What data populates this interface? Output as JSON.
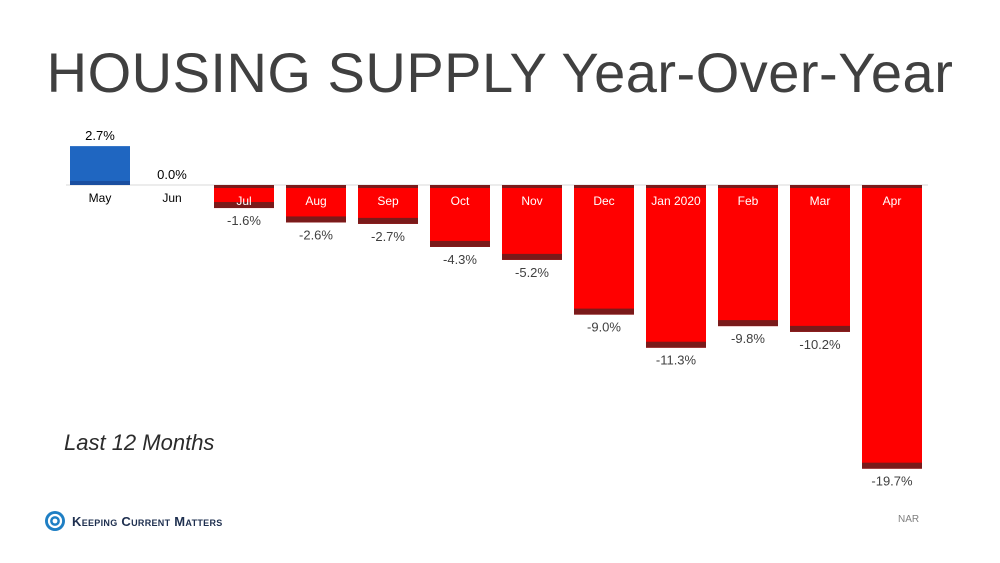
{
  "title": "HOUSING SUPPLY Year-Over-Year",
  "subtitle": "Last 12 Months",
  "logo": {
    "text": "Keeping Current Matters",
    "icon": "kcm-swirl-icon"
  },
  "source": "NAR",
  "colors": {
    "positive": "#1f66c1",
    "negative": "#ff0000",
    "accent_dark": "#7a1a1a",
    "text": "#404040"
  },
  "chart_data": {
    "type": "bar",
    "categories": [
      "May",
      "Jun",
      "Jul",
      "Aug",
      "Sep",
      "Oct",
      "Nov",
      "Dec",
      "Jan 2020",
      "Feb",
      "Mar",
      "Apr"
    ],
    "values": [
      2.7,
      0.0,
      -1.6,
      -2.6,
      -2.7,
      -4.3,
      -5.2,
      -9.0,
      -11.3,
      -9.8,
      -10.2,
      -19.7
    ],
    "data_labels": [
      "2.7%",
      "0.0%",
      "-1.6%",
      "-2.6%",
      "-2.7%",
      "-4.3%",
      "-5.2%",
      "-9.0%",
      "-11.3%",
      "-9.8%",
      "-10.2%",
      "-19.7%"
    ],
    "ylim": [
      -19.7,
      2.7
    ],
    "xlabel": "",
    "ylabel": "",
    "grid": false,
    "legend": "none"
  }
}
